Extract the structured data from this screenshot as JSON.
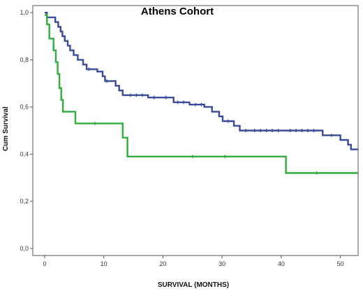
{
  "chart_data": {
    "type": "line",
    "title": "Athens Cohort",
    "xlabel": "SURVIVAL (MONTHS)",
    "ylabel": "Cum Survival",
    "xlim": [
      -2,
      53
    ],
    "ylim": [
      -0.03,
      1.03
    ],
    "x_ticks": [
      0,
      10,
      20,
      30,
      40,
      50
    ],
    "x_tick_labels": [
      "0",
      "10",
      "20",
      "30",
      "40",
      "50"
    ],
    "y_ticks": [
      0.0,
      0.2,
      0.4,
      0.6,
      0.8,
      1.0
    ],
    "y_tick_labels": [
      "0,0",
      "0,2",
      "0,4",
      "0,6",
      "0,8",
      "1,0"
    ],
    "grid": false,
    "series": [
      {
        "color": "#3a4a9a",
        "step": true,
        "points": [
          [
            0,
            1.0
          ],
          [
            0.4,
            0.98
          ],
          [
            1.8,
            0.96
          ],
          [
            2.3,
            0.94
          ],
          [
            2.7,
            0.92
          ],
          [
            3.0,
            0.9
          ],
          [
            3.4,
            0.88
          ],
          [
            3.9,
            0.86
          ],
          [
            4.3,
            0.84
          ],
          [
            4.9,
            0.82
          ],
          [
            5.6,
            0.8
          ],
          [
            6.5,
            0.78
          ],
          [
            7.1,
            0.76
          ],
          [
            8.9,
            0.75
          ],
          [
            9.8,
            0.73
          ],
          [
            10.2,
            0.71
          ],
          [
            12.0,
            0.69
          ],
          [
            12.6,
            0.67
          ],
          [
            13.2,
            0.65
          ],
          [
            17.5,
            0.64
          ],
          [
            21.8,
            0.62
          ],
          [
            24.5,
            0.61
          ],
          [
            27.0,
            0.6
          ],
          [
            28.3,
            0.58
          ],
          [
            29.5,
            0.56
          ],
          [
            30.1,
            0.54
          ],
          [
            32.0,
            0.52
          ],
          [
            33.0,
            0.5
          ],
          [
            47.0,
            0.48
          ],
          [
            50.0,
            0.46
          ],
          [
            51.3,
            0.44
          ],
          [
            51.8,
            0.42
          ],
          [
            53.0,
            0.42
          ]
        ],
        "censor_x": [
          7.5,
          10.5,
          14.5,
          15.5,
          16.5,
          18.5,
          20.5,
          22.5,
          23.5,
          25.5,
          26.5,
          31,
          34,
          35.5,
          36.5,
          37.5,
          38.5,
          39.5,
          41.5,
          42.5,
          43.5,
          44.5,
          45.5,
          48.5
        ]
      },
      {
        "color": "#2fae3c",
        "step": true,
        "points": [
          [
            0,
            0.99
          ],
          [
            0.4,
            0.95
          ],
          [
            0.8,
            0.89
          ],
          [
            1.5,
            0.84
          ],
          [
            1.9,
            0.79
          ],
          [
            2.2,
            0.74
          ],
          [
            2.5,
            0.68
          ],
          [
            2.8,
            0.63
          ],
          [
            3.1,
            0.58
          ],
          [
            5.2,
            0.53
          ],
          [
            13.2,
            0.47
          ],
          [
            14.0,
            0.39
          ],
          [
            40.8,
            0.32
          ],
          [
            53.0,
            0.32
          ]
        ],
        "censor_x": [
          8.5,
          25,
          30.5,
          46
        ]
      }
    ]
  }
}
